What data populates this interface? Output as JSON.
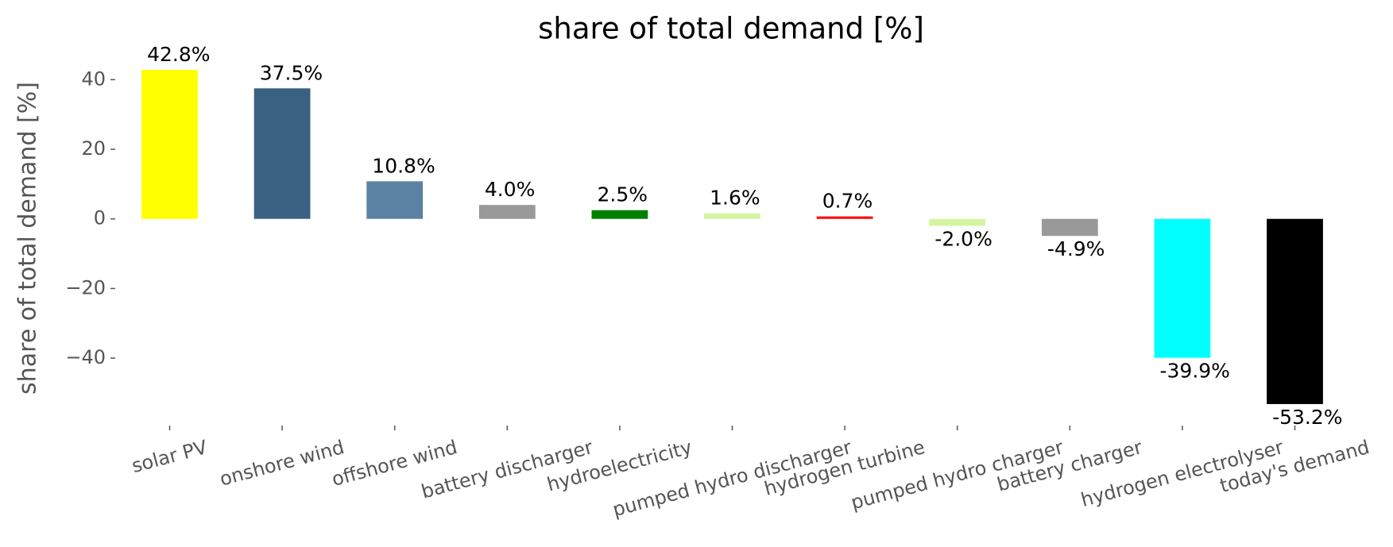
{
  "chart_data": {
    "type": "bar",
    "title": "share of total demand [%]",
    "y_label": "share of total demand [%]",
    "categories": [
      "solar PV",
      "onshore wind",
      "offshore wind",
      "battery discharger",
      "hydroelectricity",
      "pumped hydro discharger",
      "hydrogen turbine",
      "pumped hydro charger",
      "battery charger",
      "hydrogen electrolyser",
      "today's demand"
    ],
    "values": [
      42.8,
      37.5,
      10.8,
      4.0,
      2.5,
      1.6,
      0.7,
      -2.0,
      -4.9,
      -39.9,
      -53.2
    ],
    "value_labels": [
      "42.8%",
      "37.5%",
      "10.8%",
      "4.0%",
      "2.5%",
      "1.6%",
      "0.7%",
      "-2.0%",
      "-4.9%",
      "-39.9%",
      "-53.2%"
    ],
    "colors": [
      "#ffff00",
      "#3b6182",
      "#5b82a3",
      "#999999",
      "#008000",
      "#d4f5a0",
      "#ff0000",
      "#d4f5a0",
      "#999999",
      "#00ffff",
      "#000000"
    ],
    "ylim": [
      -58,
      47.6
    ],
    "yticks": [
      {
        "value": -40,
        "label": "−40"
      },
      {
        "value": -20,
        "label": "−20"
      },
      0,
      20,
      40
    ],
    "grid": false
  }
}
